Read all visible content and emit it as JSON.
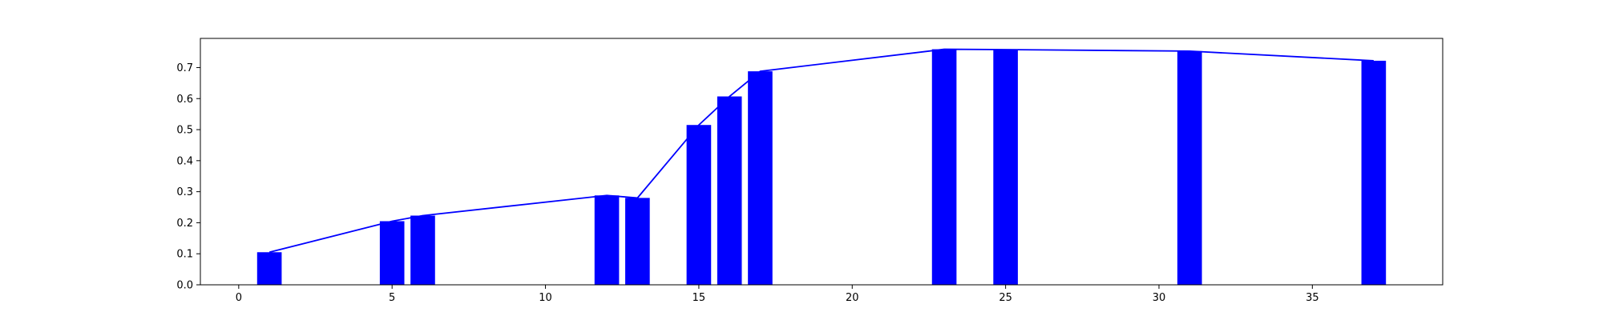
{
  "chart_data": {
    "type": "bar",
    "title": "",
    "xlabel": "",
    "ylabel": "",
    "xlim": [
      -1.25,
      39.25
    ],
    "ylim": [
      0,
      0.794
    ],
    "grid": false,
    "legend": "none",
    "colors": {
      "bar": "#0000ff",
      "line": "#0000ff",
      "axes": "#000000"
    },
    "xticks": [
      0,
      5,
      10,
      15,
      20,
      25,
      30,
      35
    ],
    "xtick_labels": [
      "0",
      "5",
      "10",
      "15",
      "20",
      "25",
      "30",
      "35"
    ],
    "yticks": [
      0.0,
      0.1,
      0.2,
      0.3,
      0.4,
      0.5,
      0.6,
      0.7
    ],
    "ytick_labels": [
      "0.0",
      "0.1",
      "0.2",
      "0.3",
      "0.4",
      "0.5",
      "0.6",
      "0.7"
    ],
    "bar_width": 0.8,
    "series": [
      {
        "type": "bar",
        "x": [
          1,
          5,
          6,
          12,
          13,
          15,
          16,
          17,
          23,
          25,
          31,
          37
        ],
        "values": [
          0.105,
          0.205,
          0.223,
          0.288,
          0.28,
          0.515,
          0.607,
          0.688,
          0.759,
          0.758,
          0.753,
          0.722
        ]
      },
      {
        "type": "line",
        "x": [
          1,
          5,
          6,
          12,
          13,
          15,
          16,
          17,
          23,
          25,
          31,
          37
        ],
        "values": [
          0.105,
          0.205,
          0.223,
          0.288,
          0.28,
          0.515,
          0.607,
          0.688,
          0.759,
          0.758,
          0.753,
          0.722
        ]
      }
    ]
  }
}
